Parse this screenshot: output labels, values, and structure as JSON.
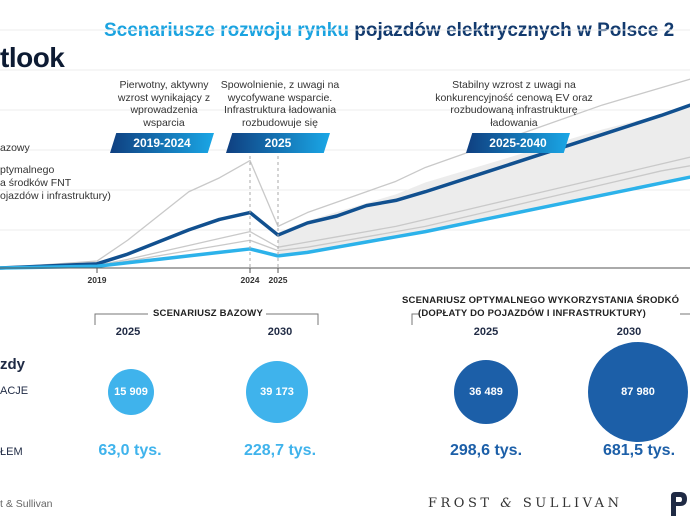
{
  "title": {
    "part1": "Scenariusze rozwoju rynku",
    "part2": "pojazdów elektrycznych w Polsce 2"
  },
  "outlook_label": "tlook",
  "legend": {
    "base": "azowy",
    "optimal_line1": "ptymalnego",
    "optimal_line2": "a środków FNT",
    "optimal_line3": "ojazdów i infrastruktury)"
  },
  "annotations": {
    "a1": "Pierwotny, aktywny wzrost wynikający z wprowadzenia wsparcia",
    "a2": "Spowolnienie, z uwagi na wycofywane wsparcie. Infrastruktura ładowania rozbudowuje się",
    "a3": "Stabilny wzrost z uwagi na konkurencyjność cenową EV oraz rozbudowaną infrastrukturę ładowania"
  },
  "badges": {
    "b1": "2019-2024",
    "b2": "2025",
    "b3": "2025-2040"
  },
  "bottom": {
    "section_base": "SCENARIUSZ BAZOWY",
    "section_opt_line1": "SCENARIUSZ OPTYMALNEGO WYKORZYSTANIA ŚRODKÓ",
    "section_opt_line2": "(DOPŁATY DO POJAZDÓW I INFRASTRUKTURY)",
    "row_label_top": "zdy",
    "row_label_mid": "ACJE",
    "row_label_bottom": "ŁEM",
    "years": [
      "2025",
      "2030",
      "2025",
      "2030"
    ],
    "circle_values": [
      "15 909",
      "39 173",
      "36 489",
      "87 980"
    ],
    "totals": [
      "63,0 tys.",
      "228,7 tys.",
      "298,6 tys.",
      "681,5 tys."
    ],
    "colors": {
      "base": "#3fb3ec",
      "optimal": "#1c5fa8"
    }
  },
  "footer": {
    "left": "t & Sullivan",
    "center_a": "FROST",
    "center_amp": "&",
    "center_b": "SULLIVAN"
  },
  "chart_data": {
    "type": "line",
    "x_ticks": [
      "2019",
      "2024",
      "2025"
    ],
    "colors": {
      "optimal": "#11508f",
      "base": "#2cb2ea",
      "other": "#c9c9c9",
      "band": "#ececec"
    },
    "note": "x = year, y = relative fleet level (no y-axis printed)",
    "series": [
      {
        "name": "optimal",
        "x": [
          2016,
          2019,
          2020,
          2021,
          2022,
          2023,
          2024,
          2025,
          2026,
          2027,
          2028,
          2029,
          2030,
          2032,
          2034,
          2036,
          2038,
          2040
        ],
        "y": [
          0,
          1.2,
          4,
          7.5,
          11,
          14,
          16,
          9.5,
          13,
          15,
          18,
          19.5,
          22,
          27.5,
          33,
          38.5,
          44,
          50
        ]
      },
      {
        "name": "base",
        "x": [
          2016,
          2019,
          2020,
          2021,
          2022,
          2023,
          2024,
          2025,
          2026,
          2027,
          2028,
          2029,
          2030,
          2032,
          2034,
          2036,
          2038,
          2040
        ],
        "y": [
          0,
          0.5,
          1.5,
          2.5,
          3.5,
          4.5,
          5.5,
          3.5,
          4.5,
          6,
          7.5,
          9,
          10.5,
          14,
          17.5,
          21,
          24.5,
          28
        ]
      },
      {
        "name": "other-high",
        "x": [
          2016,
          2019,
          2020,
          2021,
          2022,
          2023,
          2024,
          2025,
          2026,
          2027,
          2028,
          2029,
          2030,
          2032,
          2034,
          2036,
          2038,
          2040
        ],
        "y": [
          0,
          2,
          8,
          15,
          22,
          26,
          31,
          12,
          16,
          19,
          22,
          25,
          29,
          35,
          41,
          47,
          52,
          57
        ]
      },
      {
        "name": "other-mid",
        "x": [
          2016,
          2019,
          2020,
          2021,
          2022,
          2023,
          2024,
          2025,
          2026,
          2027,
          2028,
          2029,
          2030,
          2032,
          2034,
          2036,
          2038,
          2040
        ],
        "y": [
          0,
          0.8,
          2.5,
          4.5,
          6.5,
          8.5,
          10.5,
          6,
          7.5,
          9,
          10.5,
          12,
          14,
          18,
          22,
          26,
          30,
          34
        ]
      },
      {
        "name": "other-low",
        "x": [
          2016,
          2019,
          2020,
          2021,
          2022,
          2023,
          2024,
          2025,
          2026,
          2027,
          2028,
          2029,
          2030,
          2032,
          2034,
          2036,
          2038,
          2040
        ],
        "y": [
          0,
          0.6,
          2,
          3.5,
          5,
          6.5,
          8,
          5,
          6,
          7.5,
          9,
          10.5,
          12,
          16,
          20,
          24,
          28,
          31
        ]
      }
    ]
  }
}
